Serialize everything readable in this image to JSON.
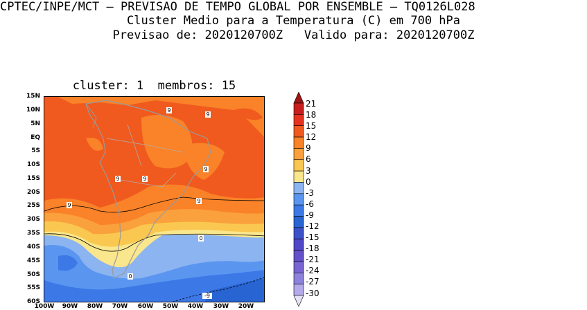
{
  "header": {
    "line1": "CPTEC/INPE/MCT — PREVISAO DE TEMPO GLOBAL POR ENSEMBLE — TQ0126L028",
    "line2": "Cluster Medio para a Temperatura (C) em 700 hPa",
    "line3": "Previsao de: 2020120700Z   Valido para: 2020120700Z"
  },
  "map": {
    "subtitle": "cluster: 1  membros: 15",
    "lat_labels": [
      "15N",
      "10N",
      "5N",
      "EQ",
      "5S",
      "10S",
      "15S",
      "20S",
      "25S",
      "30S",
      "35S",
      "40S",
      "45S",
      "50S",
      "55S",
      "60S"
    ],
    "lon_labels": [
      "100W",
      "90W",
      "80W",
      "70W",
      "60W",
      "50W",
      "40W",
      "30W",
      "20W"
    ],
    "contour_labels": [
      "9",
      "9",
      "9",
      "9",
      "9",
      "9",
      "9",
      "0",
      "0",
      "-9"
    ]
  },
  "colorbar": {
    "labels": [
      "21",
      "18",
      "15",
      "12",
      "9",
      "6",
      "3",
      "0",
      "-3",
      "-6",
      "-9",
      "-12",
      "-15",
      "-18",
      "-21",
      "-24",
      "-27",
      "-30"
    ],
    "colors": [
      "#a01414",
      "#c81e1e",
      "#e6321e",
      "#f05a1e",
      "#fa8228",
      "#faa03c",
      "#fac850",
      "#fae68c",
      "#8cb4f0",
      "#5a96f0",
      "#3c78e6",
      "#2864d2",
      "#3c50c8",
      "#5046c8",
      "#6450c8",
      "#7864d2",
      "#8c82dc",
      "#b4aaeb",
      "#e6e1f5"
    ]
  }
}
